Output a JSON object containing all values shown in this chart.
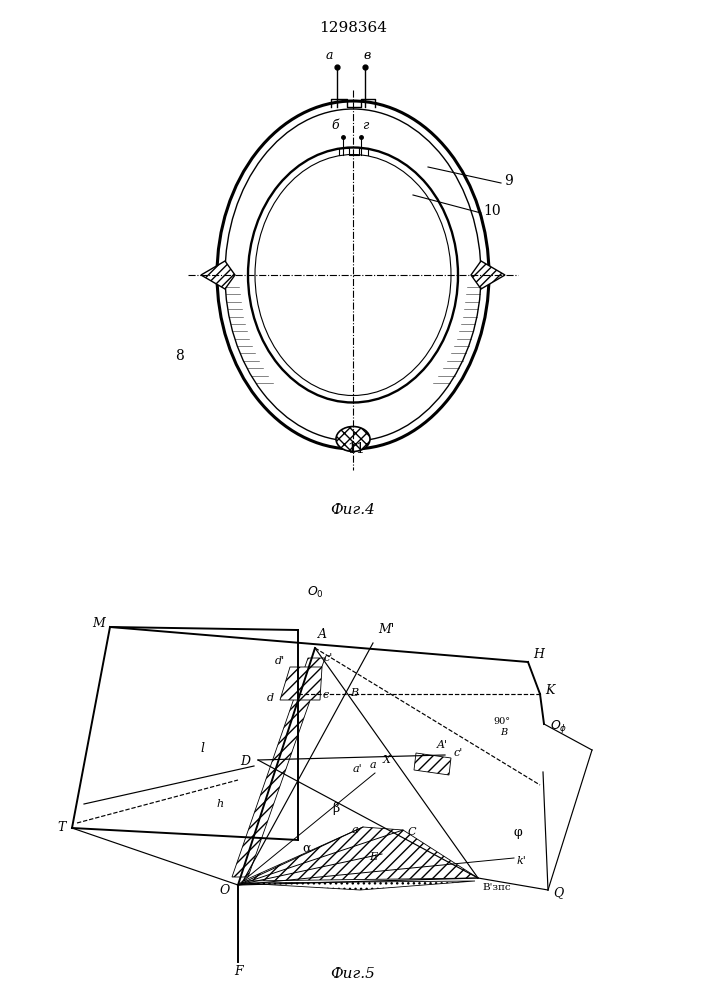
{
  "title": "1298364",
  "fig4_label": "Фиг.4",
  "fig5_label": "Фиг.5"
}
